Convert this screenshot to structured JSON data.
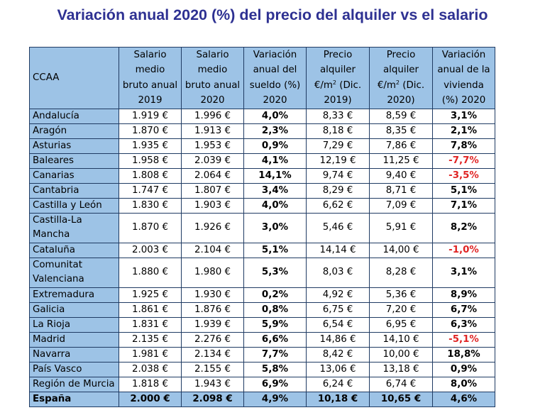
{
  "title": "Variación anual 2020 (%) del precio del alquiler vs el salario",
  "headers": {
    "ccaa": "CCAA",
    "salario_2019": "Salario medio bruto anual 2019",
    "salario_2020": "Salario medio bruto anual 2020",
    "var_sueldo": "Variación anual del sueldo (%) 2020",
    "alquiler_2019_pre": "Precio alquiler €/m",
    "alquiler_2019_post": " (Dic. 2019)",
    "alquiler_2020_pre": "Precio alquiler €/m",
    "alquiler_2020_post": " (Dic. 2020)",
    "squared": "2",
    "var_vivienda": "Variación anual de la vivienda (%) 2020"
  },
  "rows": [
    {
      "ccaa": "Andalucía",
      "s2019": "1.919 €",
      "s2020": "1.996 €",
      "vs": "4,0%",
      "a2019": "8,33 €",
      "a2020": "8,59 €",
      "vv": "3,1%"
    },
    {
      "ccaa": "Aragón",
      "s2019": "1.870 €",
      "s2020": "1.913 €",
      "vs": "2,3%",
      "a2019": "8,18 €",
      "a2020": "8,35 €",
      "vv": "2,1%"
    },
    {
      "ccaa": "Asturias",
      "s2019": "1.935 €",
      "s2020": "1.953 €",
      "vs": "0,9%",
      "a2019": "7,29 €",
      "a2020": "7,86 €",
      "vv": "7,8%"
    },
    {
      "ccaa": "Baleares",
      "s2019": "1.958 €",
      "s2020": "2.039 €",
      "vs": "4,1%",
      "a2019": "12,19 €",
      "a2020": "11,25 €",
      "vv": "-7,7%"
    },
    {
      "ccaa": "Canarias",
      "s2019": "1.808 €",
      "s2020": "2.064 €",
      "vs": "14,1%",
      "a2019": "9,74 €",
      "a2020": "9,40 €",
      "vv": "-3,5%"
    },
    {
      "ccaa": "Cantabria",
      "s2019": "1.747 €",
      "s2020": "1.807 €",
      "vs": "3,4%",
      "a2019": "8,29 €",
      "a2020": "8,71 €",
      "vv": "5,1%"
    },
    {
      "ccaa": "Castilla y León",
      "s2019": "1.830 €",
      "s2020": "1.903 €",
      "vs": "4,0%",
      "a2019": "6,62 €",
      "a2020": "7,09 €",
      "vv": "7,1%"
    },
    {
      "ccaa": "Castilla-La Mancha",
      "s2019": "1.870 €",
      "s2020": "1.926 €",
      "vs": "3,0%",
      "a2019": "5,46 €",
      "a2020": "5,91 €",
      "vv": "8,2%"
    },
    {
      "ccaa": "Cataluña",
      "s2019": "2.003 €",
      "s2020": "2.104 €",
      "vs": "5,1%",
      "a2019": "14,14 €",
      "a2020": "14,00 €",
      "vv": "-1,0%"
    },
    {
      "ccaa": "Comunitat Valenciana",
      "s2019": "1.880 €",
      "s2020": "1.980 €",
      "vs": "5,3%",
      "a2019": "8,03 €",
      "a2020": "8,28 €",
      "vv": "3,1%"
    },
    {
      "ccaa": "Extremadura",
      "s2019": "1.925 €",
      "s2020": "1.930 €",
      "vs": "0,2%",
      "a2019": "4,92 €",
      "a2020": "5,36 €",
      "vv": "8,9%"
    },
    {
      "ccaa": "Galicia",
      "s2019": "1.861 €",
      "s2020": "1.876 €",
      "vs": "0,8%",
      "a2019": "6,75 €",
      "a2020": "7,20 €",
      "vv": "6,7%"
    },
    {
      "ccaa": "La Rioja",
      "s2019": "1.831 €",
      "s2020": "1.939 €",
      "vs": "5,9%",
      "a2019": "6,54 €",
      "a2020": "6,95 €",
      "vv": "6,3%"
    },
    {
      "ccaa": "Madrid",
      "s2019": "2.135 €",
      "s2020": "2.276 €",
      "vs": "6,6%",
      "a2019": "14,86 €",
      "a2020": "14,10 €",
      "vv": "-5,1%"
    },
    {
      "ccaa": "Navarra",
      "s2019": "1.981 €",
      "s2020": "2.134 €",
      "vs": "7,7%",
      "a2019": "8,42 €",
      "a2020": "10,00 €",
      "vv": "18,8%"
    },
    {
      "ccaa": "País Vasco",
      "s2019": "2.038 €",
      "s2020": "2.155 €",
      "vs": "5,8%",
      "a2019": "13,06 €",
      "a2020": "13,18 €",
      "vv": "0,9%"
    },
    {
      "ccaa": "Región de Murcia",
      "s2019": "1.818 €",
      "s2020": "1.943 €",
      "vs": "6,9%",
      "a2019": "6,24 €",
      "a2020": "6,74 €",
      "vv": "8,0%"
    }
  ],
  "total": {
    "ccaa": "España",
    "s2019": "2.000 €",
    "s2020": "2.098 €",
    "vs": "4,9%",
    "a2019": "10,18 €",
    "a2020": "10,65 €",
    "vv": "4,6%"
  },
  "colors": {
    "header_fill": "#9dc3e6",
    "title": "#2e3192",
    "negative": "#e02424",
    "border": "#1f3b63"
  }
}
